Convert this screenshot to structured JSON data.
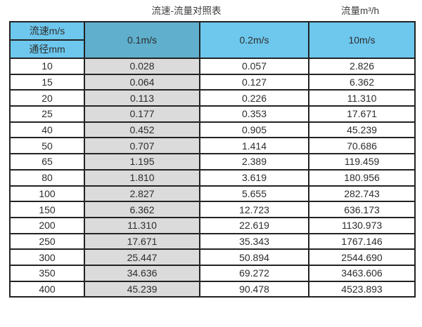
{
  "titles": {
    "table_title": "流速-流量对照表",
    "flow_unit": "流量m³/h"
  },
  "chart_data": {
    "type": "table",
    "title": "流速-流量对照表",
    "flow_unit_label": "流量m³/h",
    "corner_labels": {
      "top": "流速m/s",
      "bottom": "通径mm"
    },
    "velocity_columns": [
      "0.1m/s",
      "0.2m/s",
      "10m/s"
    ],
    "diameters_mm": [
      10,
      15,
      20,
      25,
      40,
      50,
      65,
      80,
      100,
      150,
      200,
      250,
      300,
      350,
      400
    ],
    "flow_rows_m3h": [
      [
        0.028,
        0.057,
        2.826
      ],
      [
        0.064,
        0.127,
        6.362
      ],
      [
        0.113,
        0.226,
        11.31
      ],
      [
        0.177,
        0.353,
        17.671
      ],
      [
        0.452,
        0.905,
        45.239
      ],
      [
        0.707,
        1.414,
        70.686
      ],
      [
        1.195,
        2.389,
        119.459
      ],
      [
        1.81,
        3.619,
        180.956
      ],
      [
        2.827,
        5.655,
        282.743
      ],
      [
        6.362,
        12.723,
        636.173
      ],
      [
        11.31,
        22.619,
        1130.973
      ],
      [
        17.671,
        35.343,
        1767.146
      ],
      [
        25.447,
        50.894,
        2544.69
      ],
      [
        34.636,
        69.272,
        3463.606
      ],
      [
        45.239,
        90.478,
        4523.893
      ]
    ],
    "value_decimals": 3,
    "layout": {
      "grid": "on",
      "highlighted_column": "0.1m/s"
    }
  },
  "colors": {
    "header_blue": "#6EC8EE",
    "column_01_header_blue": "#5FAFCD",
    "column_01_body_gray": "#DBDBDB",
    "border": "#222222"
  }
}
